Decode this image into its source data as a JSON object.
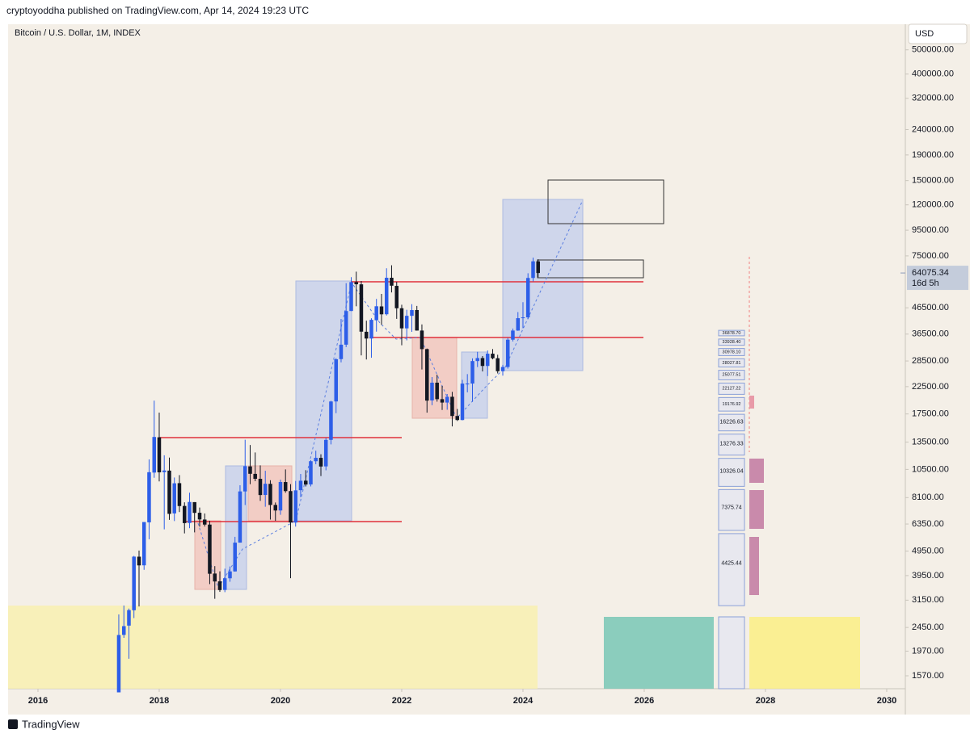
{
  "header": {
    "published": "cryptoyoddha published on TradingView.com, Apr 14, 2024 19:23 UTC",
    "brand": "TradingView"
  },
  "chart_data": {
    "type": "candlestick",
    "title": "Bitcoin / U.S. Dollar, 1M, INDEX",
    "currency": "USD",
    "log_scale": true,
    "grid": false,
    "up_color": "#2d5ee8",
    "down_color": "#131722",
    "xlim": [
      2015.507,
      2030.307
    ],
    "xticks": [
      2016,
      2018,
      2020,
      2022,
      2024,
      2026,
      2028,
      2030
    ],
    "ylim": [
      1394,
      633000
    ],
    "yticks": [
      {
        "value": 500000,
        "label": "500000.00"
      },
      {
        "value": 400000,
        "label": "400000.00"
      },
      {
        "value": 320000,
        "label": "320000.00"
      },
      {
        "value": 240000,
        "label": "240000.00"
      },
      {
        "value": 190000,
        "label": "190000.00"
      },
      {
        "value": 150000,
        "label": "150000.00"
      },
      {
        "value": 120000,
        "label": "120000.00"
      },
      {
        "value": 95000,
        "label": "95000.00"
      },
      {
        "value": 75000,
        "label": "75000.00"
      },
      {
        "value": 46500,
        "label": "46500.00"
      },
      {
        "value": 36500,
        "label": "36500.00"
      },
      {
        "value": 28500,
        "label": "28500.00"
      },
      {
        "value": 22500,
        "label": "22500.00"
      },
      {
        "value": 17500,
        "label": "17500.00"
      },
      {
        "value": 13500,
        "label": "13500.00"
      },
      {
        "value": 10500,
        "label": "10500.00"
      },
      {
        "value": 8100,
        "label": "8100.00"
      },
      {
        "value": 6350,
        "label": "6350.00"
      },
      {
        "value": 4950,
        "label": "4950.00"
      },
      {
        "value": 3950,
        "label": "3950.00"
      },
      {
        "value": 3150,
        "label": "3150.00"
      },
      {
        "value": 2450,
        "label": "2450.00"
      },
      {
        "value": 1970,
        "label": "1970.00"
      },
      {
        "value": 1570,
        "label": "1570.00"
      }
    ],
    "last_price": 64075.34,
    "countdown": "16d 5h",
    "x": [
      2017.333,
      2017.417,
      2017.5,
      2017.583,
      2017.667,
      2017.75,
      2017.833,
      2017.917,
      2018,
      2018.083,
      2018.167,
      2018.25,
      2018.333,
      2018.417,
      2018.5,
      2018.583,
      2018.667,
      2018.75,
      2018.833,
      2018.917,
      2019,
      2019.083,
      2019.167,
      2019.25,
      2019.333,
      2019.417,
      2019.5,
      2019.583,
      2019.667,
      2019.75,
      2019.833,
      2019.917,
      2020,
      2020.083,
      2020.167,
      2020.25,
      2020.333,
      2020.417,
      2020.5,
      2020.583,
      2020.667,
      2020.75,
      2020.833,
      2020.917,
      2021,
      2021.083,
      2021.167,
      2021.25,
      2021.333,
      2021.417,
      2021.5,
      2021.583,
      2021.667,
      2021.75,
      2021.833,
      2021.917,
      2022,
      2022.083,
      2022.167,
      2022.25,
      2022.333,
      2022.417,
      2022.5,
      2022.583,
      2022.667,
      2022.75,
      2022.833,
      2022.917,
      2023,
      2023.083,
      2023.167,
      2023.25,
      2023.333,
      2023.417,
      2023.5,
      2023.583,
      2023.667,
      2023.75,
      2023.833,
      2023.917,
      2024,
      2024.083,
      2024.167,
      2024.25
    ],
    "open": [
      1348,
      2288,
      2492,
      2871,
      4701,
      4341,
      6449,
      10198,
      14112,
      10237,
      10385,
      7003,
      9251,
      7500,
      6411,
      7769,
      7044,
      6619,
      6318,
      4025,
      3746,
      3460,
      3853,
      4105,
      5351,
      8573,
      10796,
      10077,
      9630,
      8299,
      9193,
      7571,
      7194,
      9346,
      8600,
      6437,
      8672,
      9463,
      9145,
      11322,
      11679,
      10796,
      13781,
      19633,
      28995,
      33115,
      45159,
      58926,
      57714,
      37293,
      35036,
      41461,
      47099,
      43816,
      61320,
      56907,
      46311,
      38482,
      43194,
      45554,
      37713,
      31792,
      19820,
      23336,
      20050,
      19432,
      20495,
      17168,
      16547,
      23139,
      23147,
      28478,
      29268,
      27220,
      30477,
      29230,
      25931,
      26967,
      34667,
      37712,
      42265,
      42582,
      61198,
      71333
    ],
    "high": [
      2763,
      2999,
      2916,
      4736,
      4975,
      6470,
      11517,
      19783,
      17712,
      11958,
      11710,
      9745,
      9964,
      7754,
      8474,
      7769,
      7388,
      7000,
      6542,
      4310,
      4109,
      4210,
      4297,
      5643,
      9074,
      13796,
      13146,
      12273,
      10898,
      10370,
      9505,
      7743,
      9553,
      10500,
      9167,
      9440,
      10067,
      10429,
      11434,
      12468,
      12067,
      14028,
      19749,
      29244,
      41946,
      58330,
      61683,
      64863,
      59519,
      41295,
      42236,
      50482,
      52853,
      66930,
      68789,
      59041,
      47827,
      45661,
      48086,
      47313,
      39902,
      31957,
      24572,
      25135,
      22673,
      21023,
      21446,
      18318,
      23955,
      25250,
      29190,
      31005,
      29820,
      31390,
      31804,
      30176,
      27488,
      35198,
      38415,
      44700,
      48969,
      63913,
      73750,
      72715
    ],
    "low": [
      1348,
      2227,
      1837,
      2671,
      2972,
      4165,
      5519,
      9722,
      9402,
      6048,
      6600,
      6526,
      7090,
      5826,
      6111,
      5880,
      6200,
      6206,
      3652,
      3191,
      3400,
      3391,
      3734,
      4097,
      5350,
      7565,
      9163,
      9421,
      7856,
      7446,
      6617,
      6540,
      6914,
      8470,
      3858,
      6202,
      8133,
      8975,
      8977,
      11012,
      9875,
      10416,
      13219,
      17619,
      28130,
      32384,
      45115,
      47159,
      30001,
      28893,
      29360,
      37332,
      39787,
      43321,
      53569,
      42000,
      32933,
      34459,
      37260,
      37697,
      26350,
      17708,
      18966,
      19600,
      18153,
      18190,
      15599,
      16398,
      16499,
      21351,
      19569,
      26942,
      25878,
      24797,
      28934,
      25409,
      24901,
      26558,
      34097,
      37615,
      38546,
      41884,
      59323,
      61600
    ],
    "close": [
      2286,
      2480,
      2875,
      4703,
      4339,
      6468,
      10233,
      14157,
      10221,
      10397,
      6973,
      9240,
      7494,
      6404,
      7780,
      7037,
      6625,
      6318,
      4017,
      3742,
      3457,
      3854,
      4105,
      5350,
      8574,
      10817,
      10085,
      9630,
      8293,
      9199,
      7569,
      7193,
      9350,
      8599,
      6438,
      8658,
      9461,
      9138,
      11323,
      11681,
      10785,
      13781,
      19625,
      28949,
      33115,
      45138,
      58918,
      57750,
      37332,
      35041,
      41626,
      47167,
      43790,
      61319,
      57005,
      46306,
      38483,
      43194,
      45538,
      37714,
      31792,
      19784,
      23336,
      20050,
      19432,
      20495,
      17168,
      16547,
      23139,
      23147,
      28478,
      29268,
      27220,
      30477,
      29230,
      25931,
      26967,
      34667,
      37712,
      42265,
      42582,
      61198,
      71333,
      64075
    ],
    "profile_levels": [
      {
        "value": 4425.44,
        "label": "4425.44"
      },
      {
        "value": 7375.74,
        "label": "7375.74"
      },
      {
        "value": 10326.04,
        "label": "10326.04"
      },
      {
        "value": 13276.33,
        "label": "13276.33"
      },
      {
        "value": 16226.63,
        "label": "16226.63"
      },
      {
        "value": 19176.92,
        "label": "19176.92"
      },
      {
        "value": 22127.22,
        "label": "22127.22"
      },
      {
        "value": 25077.51,
        "label": "25077.51"
      },
      {
        "value": 28027.81,
        "label": "28027.81"
      },
      {
        "value": 30978.1,
        "label": "30978.10"
      },
      {
        "value": 33928.4,
        "label": "33928.40"
      },
      {
        "value": 36878.7,
        "label": "36878.70"
      }
    ]
  }
}
